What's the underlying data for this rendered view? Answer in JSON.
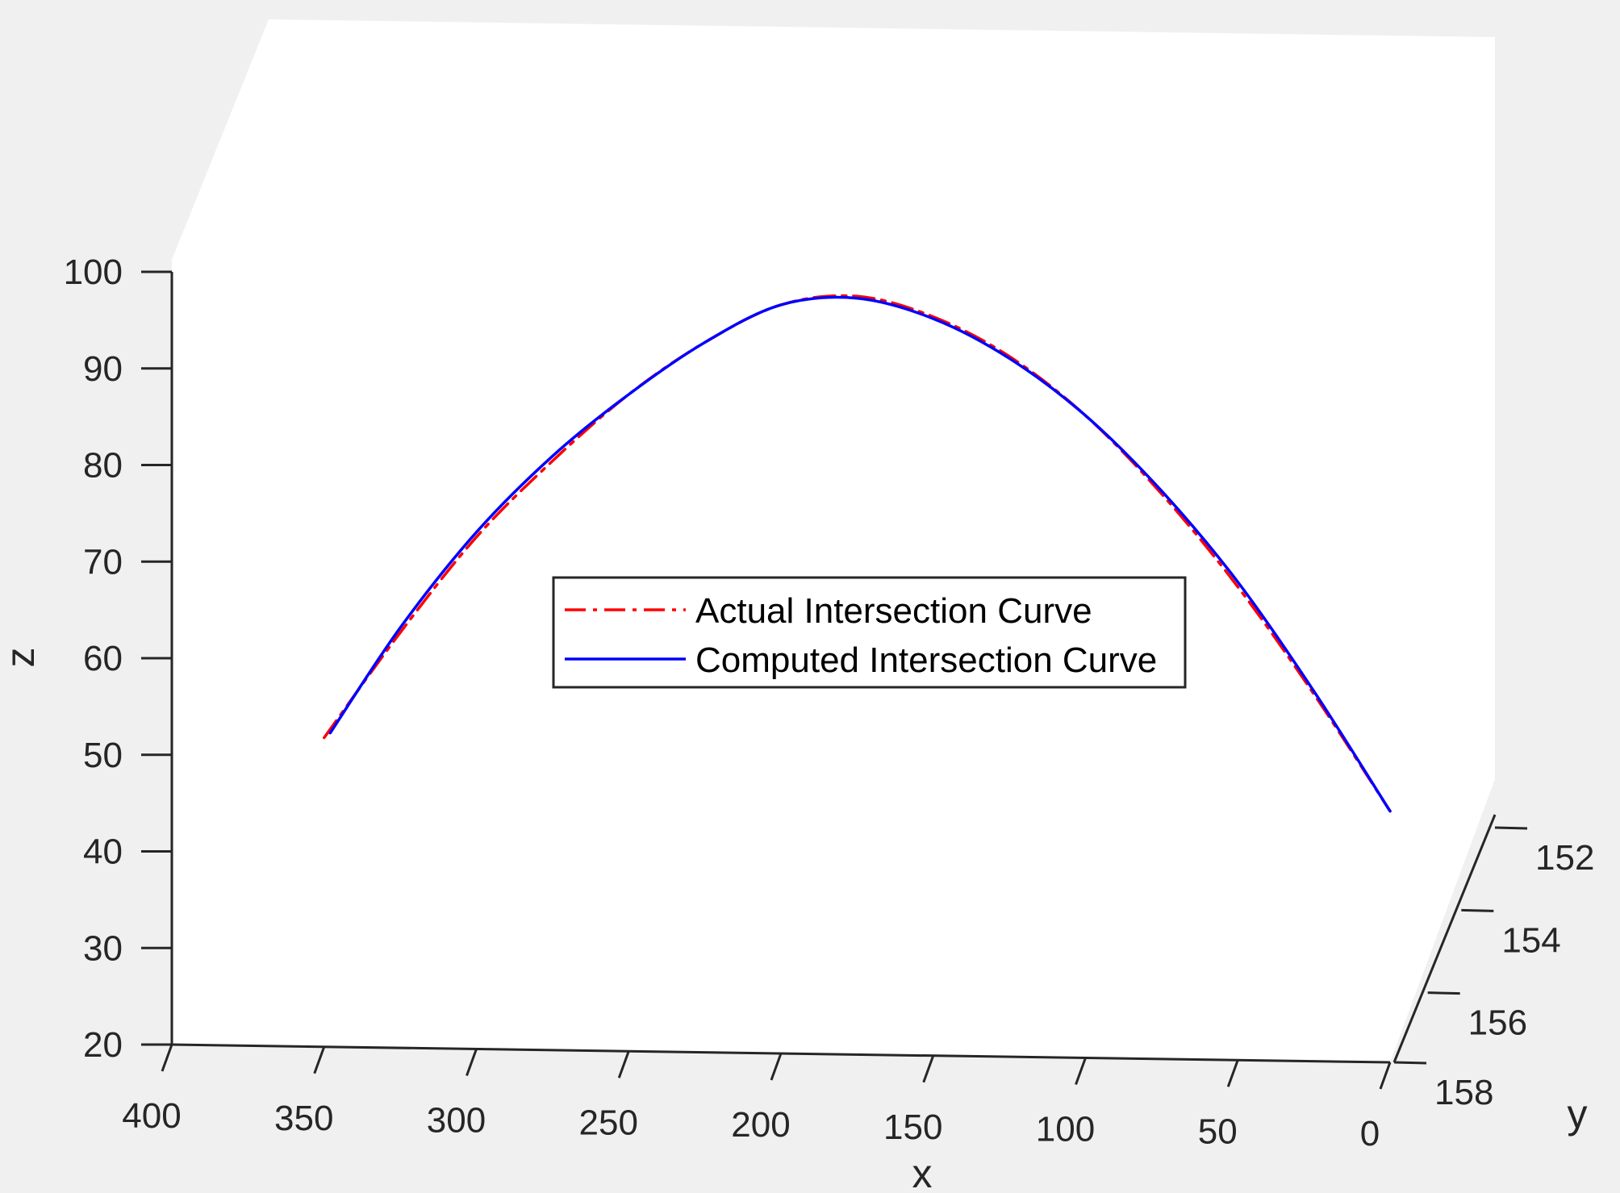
{
  "chart_data": {
    "type": "line",
    "view": "3d",
    "xlabel": "x",
    "ylabel": "y",
    "zlabel": "z",
    "xlim": [
      0,
      400
    ],
    "ylim": [
      152,
      158
    ],
    "zlim": [
      20,
      100
    ],
    "xticks": [
      "400",
      "350",
      "300",
      "250",
      "200",
      "150",
      "100",
      "50",
      "0"
    ],
    "yticks": [
      "152",
      "154",
      "156",
      "158"
    ],
    "zticks": [
      "100",
      "90",
      "80",
      "70",
      "60",
      "50",
      "40",
      "30",
      "20"
    ],
    "legend_position": "center",
    "series": [
      {
        "name": "Actual Intersection Curve",
        "color": "#ff0000",
        "style": "dash-dot",
        "x": [
          350,
          325,
          300,
          275,
          250,
          225,
          200,
          175,
          150,
          125,
          100,
          75,
          50,
          25,
          0
        ],
        "z": [
          52,
          63,
          73,
          81,
          88,
          93.5,
          97.5,
          98.5,
          96.5,
          92.5,
          86.5,
          78.5,
          69,
          58,
          46
        ]
      },
      {
        "name": "Computed Intersection Curve",
        "color": "#0000ff",
        "style": "solid",
        "x": [
          348,
          325,
          300,
          275,
          250,
          225,
          200,
          175,
          150,
          125,
          100,
          75,
          50,
          25,
          0
        ],
        "z": [
          52.5,
          63.5,
          73.5,
          81.5,
          88,
          93.5,
          97.5,
          98.3,
          96.3,
          92.3,
          86.5,
          78.8,
          69.5,
          58.3,
          46
        ]
      }
    ]
  }
}
